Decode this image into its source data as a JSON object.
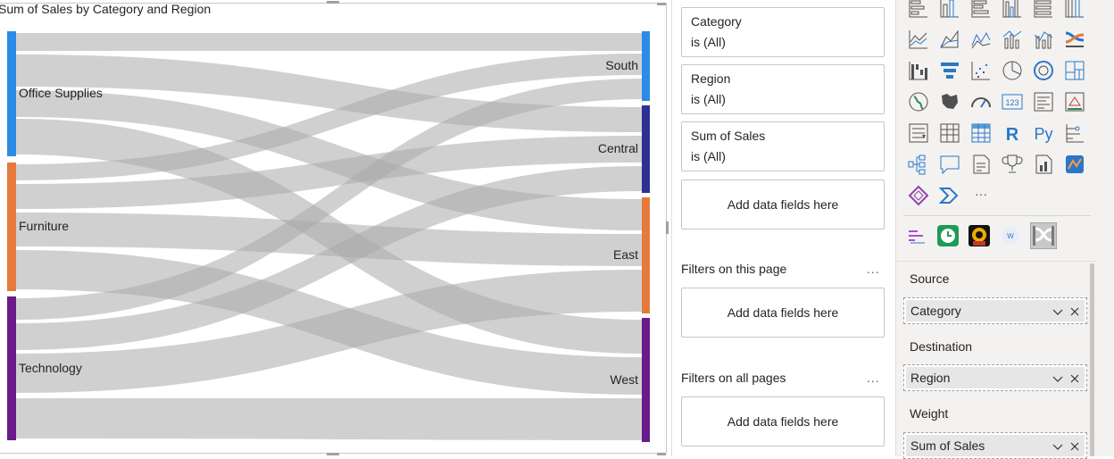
{
  "visual": {
    "title": "Sum of Sales by Category and Region",
    "source_nodes": [
      {
        "label": "Office Supplies",
        "color": "#2b8be6"
      },
      {
        "label": "Furniture",
        "color": "#e67a3c"
      },
      {
        "label": "Technology",
        "color": "#6a1b8a"
      }
    ],
    "dest_nodes": [
      {
        "label": "South",
        "color": "#2b8be6"
      },
      {
        "label": "Central",
        "color": "#2e3192"
      },
      {
        "label": "East",
        "color": "#e67a3c"
      },
      {
        "label": "West",
        "color": "#6a1b8a"
      }
    ],
    "link_color": "#a9a9a9"
  },
  "filters": {
    "cards": [
      {
        "name": "Category",
        "value": "is (All)"
      },
      {
        "name": "Region",
        "value": "is (All)"
      },
      {
        "name": "Sum of Sales",
        "value": "is (All)"
      }
    ],
    "add_label": "Add data fields here",
    "page_section": "Filters on this page",
    "all_section": "Filters on all pages",
    "more": "..."
  },
  "viz_pane": {
    "icons": [
      "stacked-bar-icon",
      "stacked-column-icon",
      "clustered-bar-icon",
      "clustered-column-icon",
      "100-bar-icon",
      "100-column-icon",
      "line-chart-icon",
      "area-chart-icon",
      "stacked-area-icon",
      "line-column-icon",
      "line-clustered-column-icon",
      "ribbon-chart-icon",
      "waterfall-icon",
      "funnel-icon",
      "scatter-icon",
      "pie-icon",
      "donut-icon",
      "treemap-icon",
      "map-icon",
      "filled-map-icon",
      "gauge-icon",
      "card-icon",
      "multirow-card-icon",
      "kpi-icon",
      "slicer-icon",
      "table-icon",
      "matrix-icon",
      "r-visual-icon",
      "python-visual-icon",
      "key-influencers-icon",
      "decomposition-tree-icon",
      "qa-icon",
      "smart-narrative-icon",
      "trophy-icon",
      "paginated-report-icon",
      "arcgis-icon",
      "power-apps-icon",
      "power-automate-icon",
      "more-visuals-icon"
    ],
    "r_label": "R",
    "py_label": "Py",
    "card_label": "123",
    "more_glyph": "···",
    "custom_icons": [
      "gantt-icon",
      "clock-icon",
      "speedometer-icon",
      "word-cloud-icon",
      "sankey-icon"
    ],
    "wells": [
      {
        "label": "Source",
        "field": "Category"
      },
      {
        "label": "Destination",
        "field": "Region"
      },
      {
        "label": "Weight",
        "field": "Sum of Sales"
      }
    ]
  }
}
